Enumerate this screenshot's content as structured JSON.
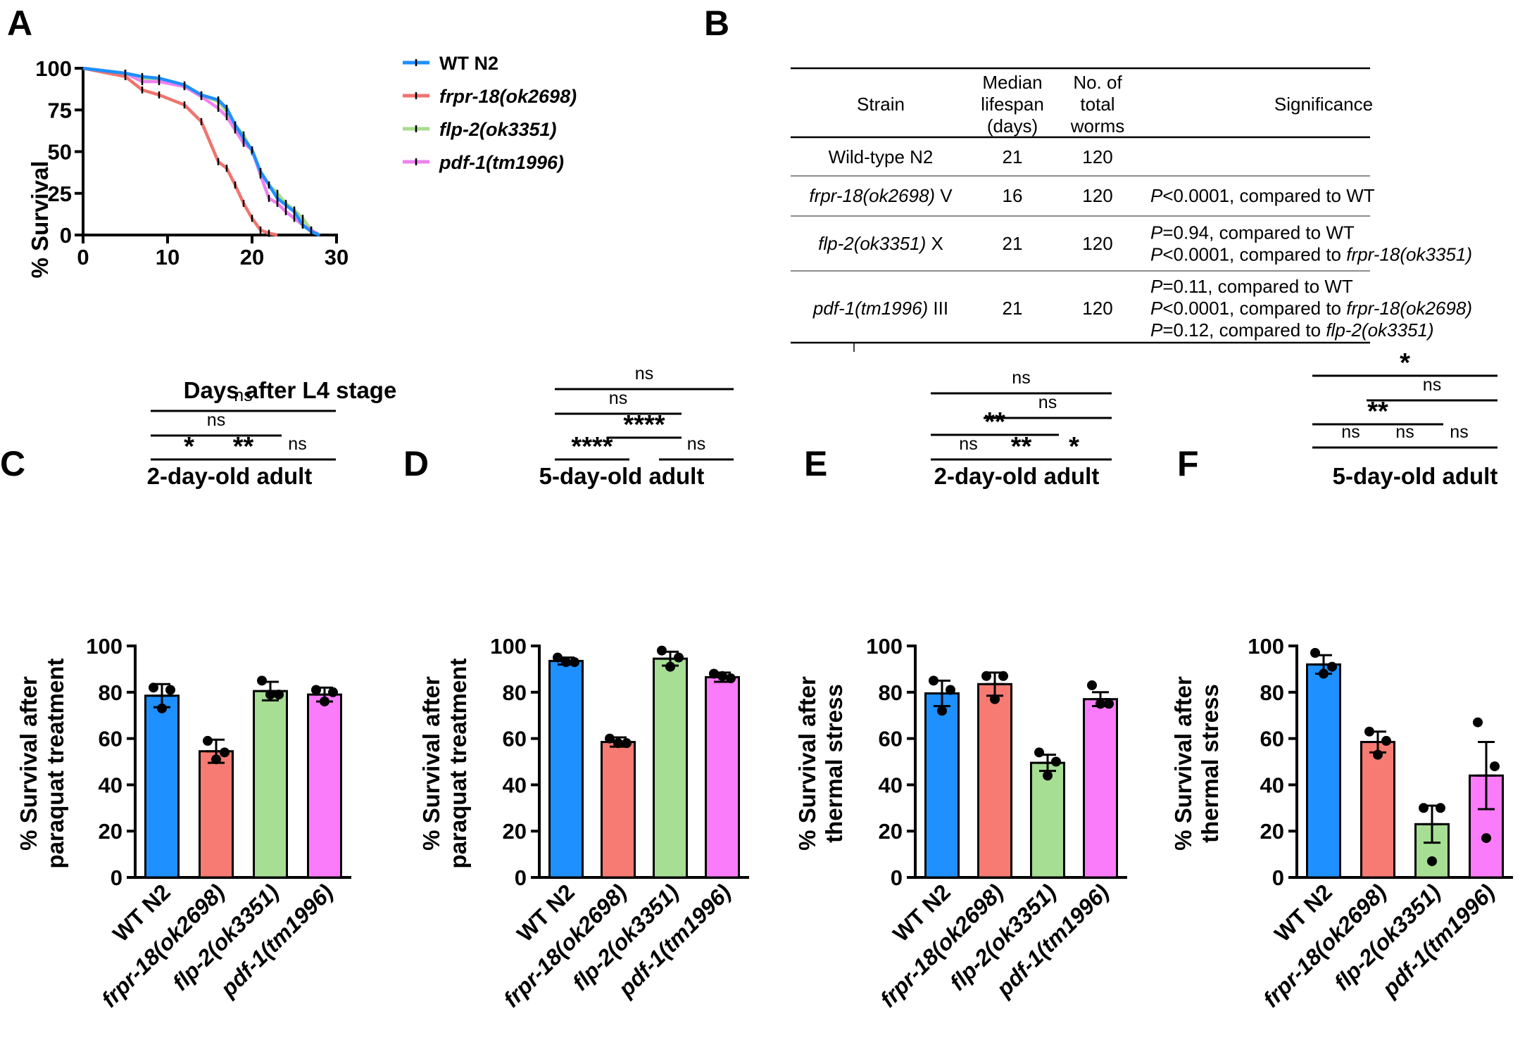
{
  "panel_labels": [
    "A",
    "B",
    "C",
    "D",
    "E",
    "F"
  ],
  "chart_data": [
    {
      "id": "A",
      "type": "line",
      "xlabel": "Days after L4 stage",
      "ylabel": "% Survival",
      "xlim": [
        0,
        30
      ],
      "ylim": [
        0,
        100
      ],
      "xticks": [
        0,
        10,
        20,
        30
      ],
      "yticks": [
        0,
        25,
        50,
        75,
        100
      ],
      "legend_position": "top-right",
      "series": [
        {
          "name": "WT N2",
          "italic": false,
          "color": "#1e90ff",
          "x": [
            0,
            5,
            7,
            9,
            12,
            14,
            16,
            17,
            18,
            19,
            20,
            21,
            22,
            23,
            24,
            25,
            26,
            27,
            28
          ],
          "y": [
            100,
            97,
            95,
            94,
            90,
            84,
            81,
            76,
            66,
            58,
            51,
            38,
            30,
            22,
            18,
            14,
            6,
            2,
            0
          ]
        },
        {
          "name": "frpr-18(ok2698)",
          "italic": true,
          "color": "#f0746e",
          "x": [
            0,
            5,
            7,
            9,
            12,
            14,
            16,
            17,
            18,
            19,
            20,
            21,
            22,
            23
          ],
          "y": [
            100,
            95,
            87,
            84,
            78,
            68,
            44,
            40,
            30,
            19,
            10,
            3,
            1,
            0
          ]
        },
        {
          "name": "flp-2(ok3351)",
          "italic": true,
          "color": "#a8dc8c",
          "x": [
            0,
            5,
            7,
            9,
            12,
            14,
            16,
            17,
            18,
            19,
            20,
            21,
            22,
            23,
            24,
            25,
            26,
            27,
            28
          ],
          "y": [
            100,
            97,
            94,
            93,
            89,
            84,
            80,
            74,
            66,
            60,
            50,
            38,
            30,
            25,
            19,
            15,
            10,
            3,
            0
          ]
        },
        {
          "name": "pdf-1(tm1996)",
          "italic": true,
          "color": "#ee82ee",
          "x": [
            0,
            5,
            7,
            9,
            12,
            14,
            16,
            17,
            18,
            19,
            20,
            21,
            22,
            23,
            24,
            25,
            26,
            27,
            28
          ],
          "y": [
            100,
            97,
            92,
            92,
            89,
            83,
            76,
            71,
            63,
            55,
            51,
            36,
            22,
            19,
            14,
            10,
            6,
            3,
            0
          ]
        }
      ]
    },
    {
      "id": "B",
      "type": "table",
      "columns": [
        "Strain",
        "Median lifespan (days)",
        "No. of total worms",
        "Significance"
      ],
      "header_lines": [
        [
          "Strain"
        ],
        [
          "Median",
          "lifespan",
          "(days)"
        ],
        [
          "No. of",
          "total",
          "worms"
        ],
        [
          "Significance"
        ]
      ],
      "rows": [
        {
          "strain": [
            {
              "t": "Wild-type N2",
              "i": false
            }
          ],
          "median": "21",
          "worms": "120",
          "significance": []
        },
        {
          "strain": [
            {
              "t": "frpr-18(ok2698)",
              "i": true
            },
            {
              "t": " V",
              "i": false
            }
          ],
          "median": "16",
          "worms": "120",
          "significance": [
            [
              {
                "t": "P",
                "i": true
              },
              {
                "t": "<0.0001, compared to WT",
                "i": false
              }
            ]
          ]
        },
        {
          "strain": [
            {
              "t": "flp-2(ok3351)",
              "i": true
            },
            {
              "t": " X",
              "i": false
            }
          ],
          "median": "21",
          "worms": "120",
          "significance": [
            [
              {
                "t": "P",
                "i": true
              },
              {
                "t": "=0.94, compared to WT",
                "i": false
              }
            ],
            [
              {
                "t": "P",
                "i": true
              },
              {
                "t": "<0.0001, compared to ",
                "i": false
              },
              {
                "t": "frpr-18(ok3351)",
                "i": true
              }
            ]
          ]
        },
        {
          "strain": [
            {
              "t": "pdf-1(tm1996)",
              "i": true
            },
            {
              "t": " III",
              "i": false
            }
          ],
          "median": "21",
          "worms": "120",
          "significance": [
            [
              {
                "t": "P",
                "i": true
              },
              {
                "t": "=0.11, compared to WT",
                "i": false
              }
            ],
            [
              {
                "t": "P",
                "i": true
              },
              {
                "t": "<0.0001, compared to ",
                "i": false
              },
              {
                "t": "frpr-18(ok2698)",
                "i": true
              }
            ],
            [
              {
                "t": "P",
                "i": true
              },
              {
                "t": "=0.12, compared to ",
                "i": false
              },
              {
                "t": "flp-2(ok3351)",
                "i": true
              }
            ]
          ]
        }
      ]
    },
    {
      "id": "C",
      "type": "bar",
      "title": "2-day-old adult",
      "ylabel": [
        "% Survival after",
        "paraquat treatment"
      ],
      "ylim": [
        0,
        100
      ],
      "yticks": [
        0,
        20,
        40,
        60,
        80,
        100
      ],
      "categories": [
        {
          "label": "WT N2",
          "italic": false
        },
        {
          "label": "frpr-18(ok2698)",
          "italic": true
        },
        {
          "label": "flp-2(ok3351)",
          "italic": true
        },
        {
          "label": "pdf-1(tm1996)",
          "italic": true
        }
      ],
      "colors": [
        "#1e90ff",
        "#f77b72",
        "#a6de94",
        "#fb7cfb"
      ],
      "values": [
        78.5,
        54.5,
        80.5,
        79
      ],
      "errors": [
        5,
        5,
        4,
        3
      ],
      "points": [
        [
          82,
          81,
          73
        ],
        [
          59,
          54,
          51
        ],
        [
          85,
          79,
          79
        ],
        [
          81,
          80,
          76
        ]
      ],
      "comparisons": [
        {
          "a": 0,
          "b": 1,
          "label": "*"
        },
        {
          "a": 1,
          "b": 2,
          "label": "**"
        },
        {
          "a": 2,
          "b": 3,
          "label": "ns"
        },
        {
          "a": 0,
          "b": 2,
          "label": "ns"
        },
        {
          "a": 0,
          "b": 3,
          "label": "ns"
        }
      ]
    },
    {
      "id": "D",
      "type": "bar",
      "title": "5-day-old adult",
      "ylabel": [
        "% Survival after",
        "paraquat treatment"
      ],
      "ylim": [
        0,
        100
      ],
      "yticks": [
        0,
        20,
        40,
        60,
        80,
        100
      ],
      "categories": [
        {
          "label": "WT N2",
          "italic": false
        },
        {
          "label": "frpr-18(ok2698)",
          "italic": true
        },
        {
          "label": "flp-2(ok3351)",
          "italic": true
        },
        {
          "label": "pdf-1(tm1996)",
          "italic": true
        }
      ],
      "colors": [
        "#1e90ff",
        "#f77b72",
        "#a6de94",
        "#fb7cfb"
      ],
      "values": [
        93.5,
        58.5,
        94.5,
        86.5
      ],
      "errors": [
        1.5,
        2,
        3,
        2
      ],
      "points": [
        [
          95,
          93,
          93
        ],
        [
          60,
          58,
          58
        ],
        [
          98,
          95,
          91
        ],
        [
          88,
          86,
          87
        ]
      ],
      "comparisons": [
        {
          "a": 0,
          "b": 1,
          "label": "****"
        },
        {
          "a": 2,
          "b": 3,
          "label": "ns"
        },
        {
          "a": 1,
          "b": 2,
          "label": "****"
        },
        {
          "a": 0,
          "b": 2,
          "label": "ns"
        },
        {
          "a": 0,
          "b": 3,
          "label": "ns"
        }
      ]
    },
    {
      "id": "E",
      "type": "bar",
      "title": "2-day-old adult",
      "ylabel": [
        "% Survival after",
        "thermal stress"
      ],
      "ylim": [
        0,
        100
      ],
      "yticks": [
        0,
        20,
        40,
        60,
        80,
        100
      ],
      "categories": [
        {
          "label": "WT N2",
          "italic": false
        },
        {
          "label": "frpr-18(ok2698)",
          "italic": true
        },
        {
          "label": "flp-2(ok3351)",
          "italic": true
        },
        {
          "label": "pdf-1(tm1996)",
          "italic": true
        }
      ],
      "colors": [
        "#1e90ff",
        "#f77b72",
        "#a6de94",
        "#fb7cfb"
      ],
      "values": [
        79.5,
        83.5,
        49.5,
        77
      ],
      "errors": [
        5.5,
        5,
        3.5,
        3
      ],
      "points": [
        [
          85,
          81,
          72
        ],
        [
          87,
          87,
          77
        ],
        [
          54,
          50,
          44
        ],
        [
          83,
          75,
          75
        ]
      ],
      "comparisons": [
        {
          "a": 0,
          "b": 1,
          "label": "ns"
        },
        {
          "a": 1,
          "b": 2,
          "label": "**"
        },
        {
          "a": 2,
          "b": 3,
          "label": "*"
        },
        {
          "a": 0,
          "b": 2,
          "label": "**"
        },
        {
          "a": 1,
          "b": 3,
          "label": "ns"
        },
        {
          "a": 0,
          "b": 3,
          "label": "ns"
        }
      ]
    },
    {
      "id": "F",
      "type": "bar",
      "title": "5-day-old adult",
      "ylabel": [
        "% Survival after",
        "thermal stress"
      ],
      "ylim": [
        0,
        100
      ],
      "yticks": [
        0,
        20,
        40,
        60,
        80,
        100
      ],
      "categories": [
        {
          "label": "WT N2",
          "italic": false
        },
        {
          "label": "frpr-18(ok2698)",
          "italic": true
        },
        {
          "label": "flp-2(ok3351)",
          "italic": true
        },
        {
          "label": "pdf-1(tm1996)",
          "italic": true
        }
      ],
      "colors": [
        "#1e90ff",
        "#f77b72",
        "#a6de94",
        "#fb7cfb"
      ],
      "values": [
        92,
        58.5,
        23,
        44
      ],
      "errors": [
        4,
        4.5,
        8,
        14.5
      ],
      "points": [
        [
          97,
          91,
          88
        ],
        [
          63,
          59,
          53
        ],
        [
          30,
          30,
          7
        ],
        [
          67,
          48,
          17
        ]
      ],
      "comparisons": [
        {
          "a": 0,
          "b": 1,
          "label": "ns"
        },
        {
          "a": 1,
          "b": 2,
          "label": "ns"
        },
        {
          "a": 2,
          "b": 3,
          "label": "ns"
        },
        {
          "a": 0,
          "b": 2,
          "label": "**"
        },
        {
          "a": 1,
          "b": 3,
          "label": "ns"
        },
        {
          "a": 0,
          "b": 3,
          "label": "*"
        }
      ]
    }
  ]
}
